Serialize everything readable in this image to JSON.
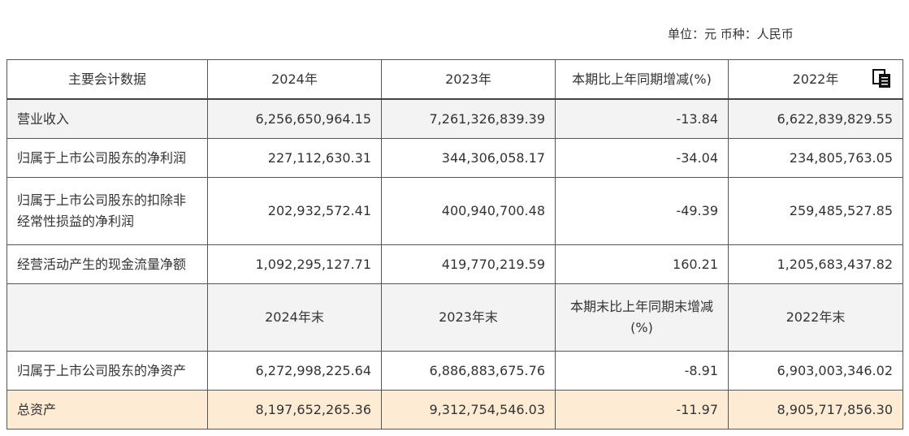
{
  "unit_line": "单位：元 币种：人民币",
  "header": [
    "主要会计数据",
    "2024年",
    "2023年",
    "本期比上年同期增减(%)",
    "2022年"
  ],
  "rows": [
    {
      "label": "营业收入",
      "y2024": "6,256,650,964.15",
      "y2023": "7,261,326,839.39",
      "change": "-13.84",
      "y2022": "6,622,839,829.55"
    },
    {
      "label": "归属于上市公司股东的净利润",
      "y2024": "227,112,630.31",
      "y2023": "344,306,058.17",
      "change": "-34.04",
      "y2022": "234,805,763.05"
    },
    {
      "label": "归属于上市公司股东的扣除非经常性损益的净利润",
      "y2024": "202,932,572.41",
      "y2023": "400,940,700.48",
      "change": "-49.39",
      "y2022": "259,485,527.85"
    },
    {
      "label": "经营活动产生的现金流量净额",
      "y2024": "1,092,295,127.71",
      "y2023": "419,770,219.59",
      "change": "160.21",
      "y2022": "1,205,683,437.82"
    }
  ],
  "subheader": [
    "",
    "2024年末",
    "2023年末",
    "本期末比上年同期末增减(%)",
    "2022年末"
  ],
  "rows2": [
    {
      "label": "归属于上市公司股东的净资产",
      "y2024": "6,272,998,225.64",
      "y2023": "6,886,883,675.76",
      "change": "-8.91",
      "y2022": "6,903,003,346.02"
    },
    {
      "label": "总资产",
      "y2024": "8,197,652,265.36",
      "y2023": "9,312,754,546.03",
      "change": "-11.97",
      "y2022": "8,905,717,856.30"
    }
  ],
  "icons": {
    "copy": "copy-icon"
  },
  "colors": {
    "highlight_row": "#fdebd3",
    "alt_row": "#f3f3f3",
    "border": "#555555"
  }
}
